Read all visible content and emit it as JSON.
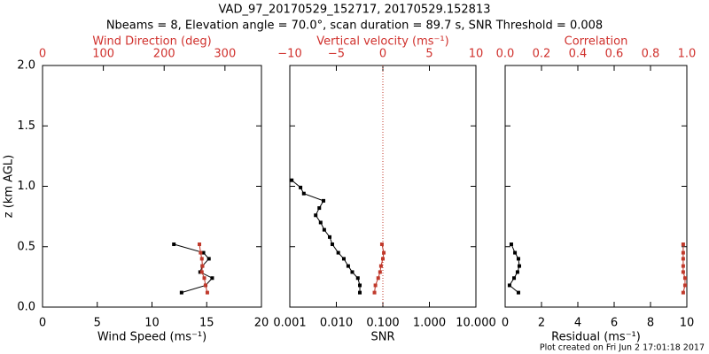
{
  "title": "VAD_97_20170529_152717, 20170529.152813",
  "subtitle": "Nbeams = 8, Elevation angle = 70.0°, scan duration = 89.7 s, SNR Threshold = 0.008",
  "footnote": "Plot created on Fri Jun  2 17:01:18 2017",
  "chart_data": [
    {
      "type": "line",
      "ylabel": "z (km AGL)",
      "y": [
        0.12,
        0.18,
        0.24,
        0.29,
        0.34,
        0.4,
        0.45,
        0.52
      ],
      "ylim": [
        0,
        2
      ],
      "yticks": [
        {
          "value": 0,
          "label": "0.0"
        },
        {
          "value": 0.5,
          "label": "0.5"
        },
        {
          "value": 1,
          "label": "1.0"
        },
        {
          "value": 1.5,
          "label": "1.5"
        },
        {
          "value": 2,
          "label": "2.0"
        }
      ],
      "xlabel": "Wind Speed (ms⁻¹)",
      "xlim": [
        0,
        20
      ],
      "xticks": [
        0,
        5,
        10,
        15,
        20
      ],
      "x2label": "Wind Direction (deg)",
      "x2lim": [
        0,
        360
      ],
      "x2ticks": [
        0,
        100,
        200,
        300
      ],
      "series": [
        {
          "color": "#000000",
          "axis": "x",
          "values": [
            12.7,
            14.9,
            15.5,
            14.4,
            14.6,
            15.2,
            14.7,
            12.0
          ]
        },
        {
          "color": "#c0392b",
          "axis": "x2",
          "values": [
            271,
            268,
            266,
            262,
            263,
            262,
            260,
            258
          ]
        }
      ]
    },
    {
      "type": "line",
      "y": [
        0.12,
        0.18,
        0.24,
        0.29,
        0.34,
        0.4,
        0.45,
        0.52,
        0.58,
        0.64,
        0.7,
        0.76,
        0.82,
        0.88,
        0.94,
        0.99,
        1.05
      ],
      "ylim": [
        0,
        2
      ],
      "yticks": [
        0,
        0.5,
        1,
        1.5,
        2
      ],
      "xlabel": "SNR",
      "xscale": "log",
      "xlim": [
        0.001,
        10
      ],
      "xticks": [
        {
          "value": 0.001,
          "label": "0.001"
        },
        {
          "value": 0.01,
          "label": "0.010"
        },
        {
          "value": 0.1,
          "label": "0.100"
        },
        {
          "value": 1,
          "label": "1.000"
        },
        {
          "value": 10,
          "label": "10.000"
        }
      ],
      "x2label": "Vertical velocity (ms⁻¹)",
      "x2lim": [
        -10,
        10
      ],
      "x2ticks": [
        {
          "value": -10,
          "label": "−10"
        },
        {
          "value": -5,
          "label": "−5"
        },
        0,
        5,
        10
      ],
      "reference_line": {
        "axis": "x2",
        "value": 0,
        "color": "#c0392b",
        "style": "dotted"
      },
      "series": [
        {
          "color": "#000000",
          "axis": "x",
          "values": [
            0.032,
            0.032,
            0.029,
            0.022,
            0.018,
            0.0145,
            0.011,
            0.0082,
            0.0072,
            0.0055,
            0.0046,
            0.0036,
            0.0043,
            0.0053,
            0.002,
            0.0017,
            0.0011
          ]
        },
        {
          "color": "#c0392b",
          "axis": "x2",
          "values": [
            -0.9,
            -0.8,
            -0.5,
            -0.3,
            -0.2,
            0.0,
            0.1,
            -0.1,
            null,
            null,
            null,
            null,
            null,
            null,
            null,
            null,
            null
          ]
        }
      ]
    },
    {
      "type": "line",
      "y": [
        0.12,
        0.18,
        0.24,
        0.29,
        0.34,
        0.4,
        0.45,
        0.52
      ],
      "ylim": [
        0,
        2
      ],
      "yticks": [
        0,
        0.5,
        1,
        1.5,
        2
      ],
      "xlabel": "Residual (ms⁻¹)",
      "xlim": [
        0,
        10
      ],
      "xticks": [
        0,
        2,
        4,
        6,
        8,
        10
      ],
      "x2label": "Correlation",
      "x2lim": [
        0,
        1
      ],
      "x2ticks": [
        {
          "value": 0,
          "label": "0.0"
        },
        {
          "value": 0.2,
          "label": "0.2"
        },
        {
          "value": 0.4,
          "label": "0.4"
        },
        {
          "value": 0.6,
          "label": "0.6"
        },
        {
          "value": 0.8,
          "label": "0.8"
        },
        {
          "value": 1,
          "label": "1.0"
        }
      ],
      "series": [
        {
          "color": "#000000",
          "axis": "x",
          "values": [
            0.73,
            0.24,
            0.49,
            0.68,
            0.78,
            0.73,
            0.54,
            0.34
          ]
        },
        {
          "color": "#c0392b",
          "axis": "x2",
          "values": [
            0.98,
            0.99,
            0.99,
            0.98,
            0.98,
            0.98,
            0.98,
            0.98
          ]
        }
      ]
    }
  ]
}
